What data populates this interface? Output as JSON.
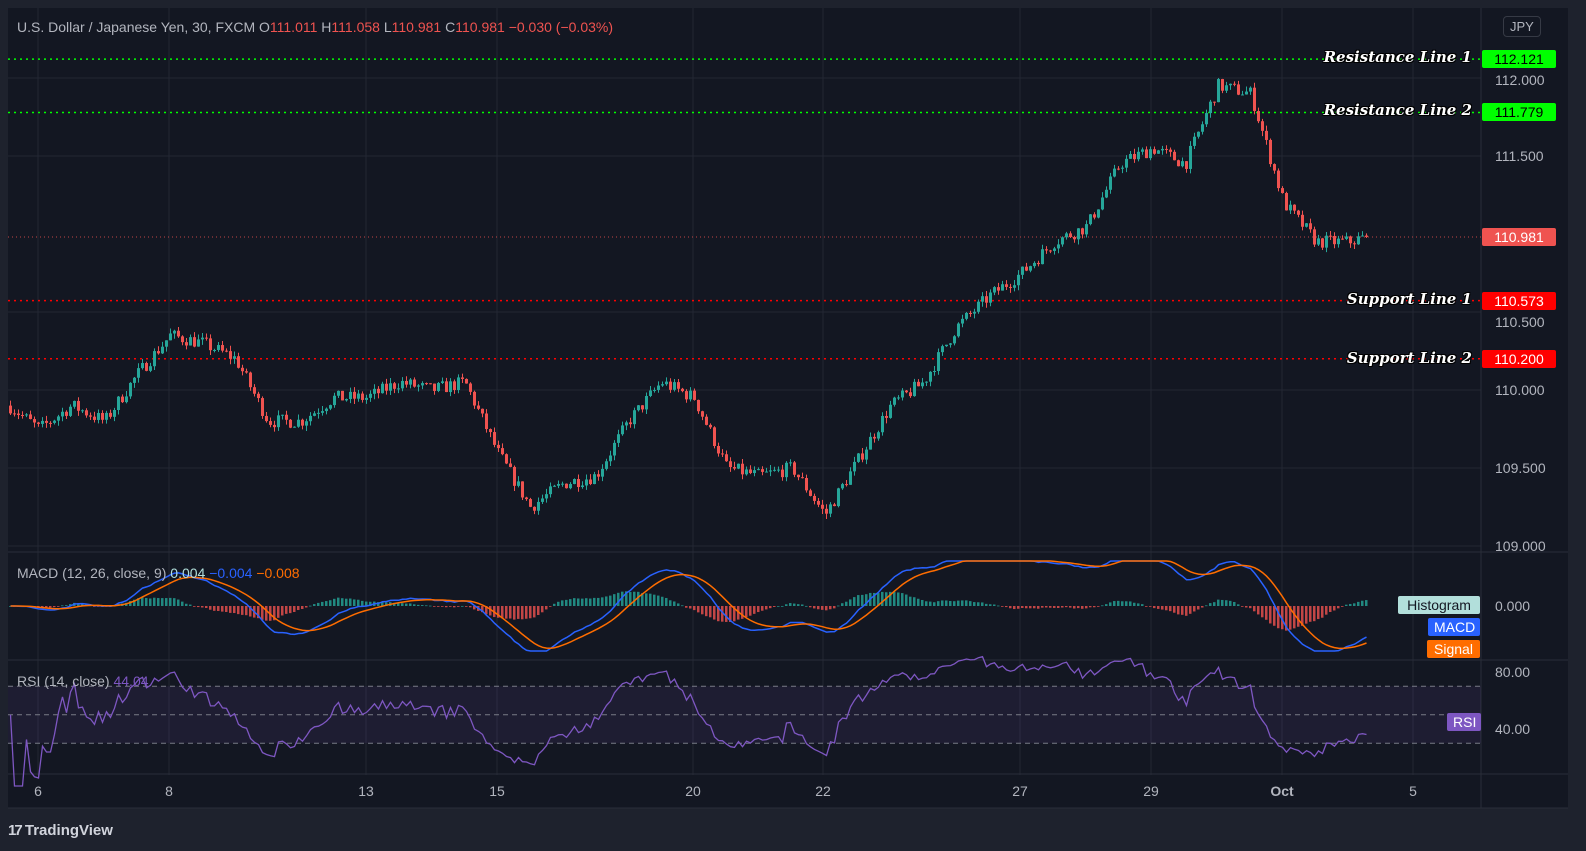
{
  "header": {
    "symbol": "U.S. Dollar / Japanese Yen, 30, FXCM",
    "open_label": "O",
    "open": "111.011",
    "high_label": "H",
    "high": "111.058",
    "low_label": "L",
    "low": "110.981",
    "close_label": "C",
    "close": "110.981",
    "change": "−0.030 (−0.03%)",
    "currency": "JPY"
  },
  "levels": [
    {
      "label": "Resistance Line 1",
      "value": "112.121",
      "color": "#00ff00"
    },
    {
      "label": "Resistance Line 2",
      "value": "111.779",
      "color": "#00ff00"
    },
    {
      "label": "Support Line 1",
      "value": "110.573",
      "color": "#ff0000"
    },
    {
      "label": "Support Line 2",
      "value": "110.200",
      "color": "#ff0000"
    }
  ],
  "last_price": {
    "value": "110.981",
    "color": "#ef5350"
  },
  "macd": {
    "title": "MACD (12, 26, close, 9)",
    "histogram": "0.004",
    "macd": "−0.004",
    "signal": "−0.008",
    "tags": {
      "histogram": "Histogram",
      "macd": "MACD",
      "signal": "Signal"
    },
    "axis": [
      "0.000"
    ]
  },
  "rsi": {
    "title": "RSI (14, close)",
    "value": "44.04",
    "tag": "RSI",
    "axis": [
      "80.00",
      "40.00"
    ]
  },
  "brand": "TradingView",
  "chart_data": {
    "type": "candlestick",
    "interval": "30",
    "y_ticks": [
      "112.000",
      "111.500",
      "110.500",
      "110.000",
      "109.500",
      "109.000"
    ],
    "ylim": [
      109.0,
      112.2
    ],
    "x_ticks": [
      "6",
      "8",
      "13",
      "15",
      "20",
      "22",
      "27",
      "29",
      "Oct",
      "5"
    ],
    "colors": {
      "up": "#26a69a",
      "down": "#ef5350",
      "macd": "#2962ff",
      "signal": "#ff6d00",
      "rsi": "#7e57c2"
    },
    "price_path": [
      {
        "t": "Sep 6 00:00",
        "price": 109.75
      },
      {
        "t": "Sep 6 12:00",
        "price": 109.9
      },
      {
        "t": "Sep 7 00:00",
        "price": 109.8
      },
      {
        "t": "Sep 7 12:00",
        "price": 110.1
      },
      {
        "t": "Sep 8 00:00",
        "price": 110.35
      },
      {
        "t": "Sep 8 12:00",
        "price": 110.3
      },
      {
        "t": "Sep 9 00:00",
        "price": 110.2
      },
      {
        "t": "Sep 9 12:00",
        "price": 109.8
      },
      {
        "t": "Sep 10 00:00",
        "price": 109.8
      },
      {
        "t": "Sep 10 12:00",
        "price": 109.95
      },
      {
        "t": "Sep 13 00:00",
        "price": 109.95
      },
      {
        "t": "Sep 13 12:00",
        "price": 110.05
      },
      {
        "t": "Sep 14 00:00",
        "price": 110.0
      },
      {
        "t": "Sep 14 12:00",
        "price": 110.05
      },
      {
        "t": "Sep 15 00:00",
        "price": 109.6
      },
      {
        "t": "Sep 15 12:00",
        "price": 109.25
      },
      {
        "t": "Sep 16 00:00",
        "price": 109.4
      },
      {
        "t": "Sep 16 12:00",
        "price": 109.45
      },
      {
        "t": "Sep 17 00:00",
        "price": 109.8
      },
      {
        "t": "Sep 17 12:00",
        "price": 110.05
      },
      {
        "t": "Sep 20 00:00",
        "price": 109.95
      },
      {
        "t": "Sep 20 12:00",
        "price": 109.5
      },
      {
        "t": "Sep 21 00:00",
        "price": 109.45
      },
      {
        "t": "Sep 21 12:00",
        "price": 109.5
      },
      {
        "t": "Sep 22 00:00",
        "price": 109.2
      },
      {
        "t": "Sep 22 12:00",
        "price": 109.55
      },
      {
        "t": "Sep 23 00:00",
        "price": 109.9
      },
      {
        "t": "Sep 23 12:00",
        "price": 110.05
      },
      {
        "t": "Sep 24 00:00",
        "price": 110.4
      },
      {
        "t": "Sep 24 12:00",
        "price": 110.6
      },
      {
        "t": "Sep 27 00:00",
        "price": 110.75
      },
      {
        "t": "Sep 27 12:00",
        "price": 110.95
      },
      {
        "t": "Sep 28 00:00",
        "price": 111.05
      },
      {
        "t": "Sep 28 12:00",
        "price": 111.45
      },
      {
        "t": "Sep 29 00:00",
        "price": 111.55
      },
      {
        "t": "Sep 29 12:00",
        "price": 111.45
      },
      {
        "t": "Sep 30 00:00",
        "price": 111.95
      },
      {
        "t": "Sep 30 12:00",
        "price": 111.9
      },
      {
        "t": "Oct 1 00:00",
        "price": 111.2
      },
      {
        "t": "Oct 1 12:00",
        "price": 110.95
      },
      {
        "t": "Oct 4 00:00",
        "price": 110.95
      },
      {
        "t": "Oct 4 06:00",
        "price": 110.981
      }
    ]
  }
}
